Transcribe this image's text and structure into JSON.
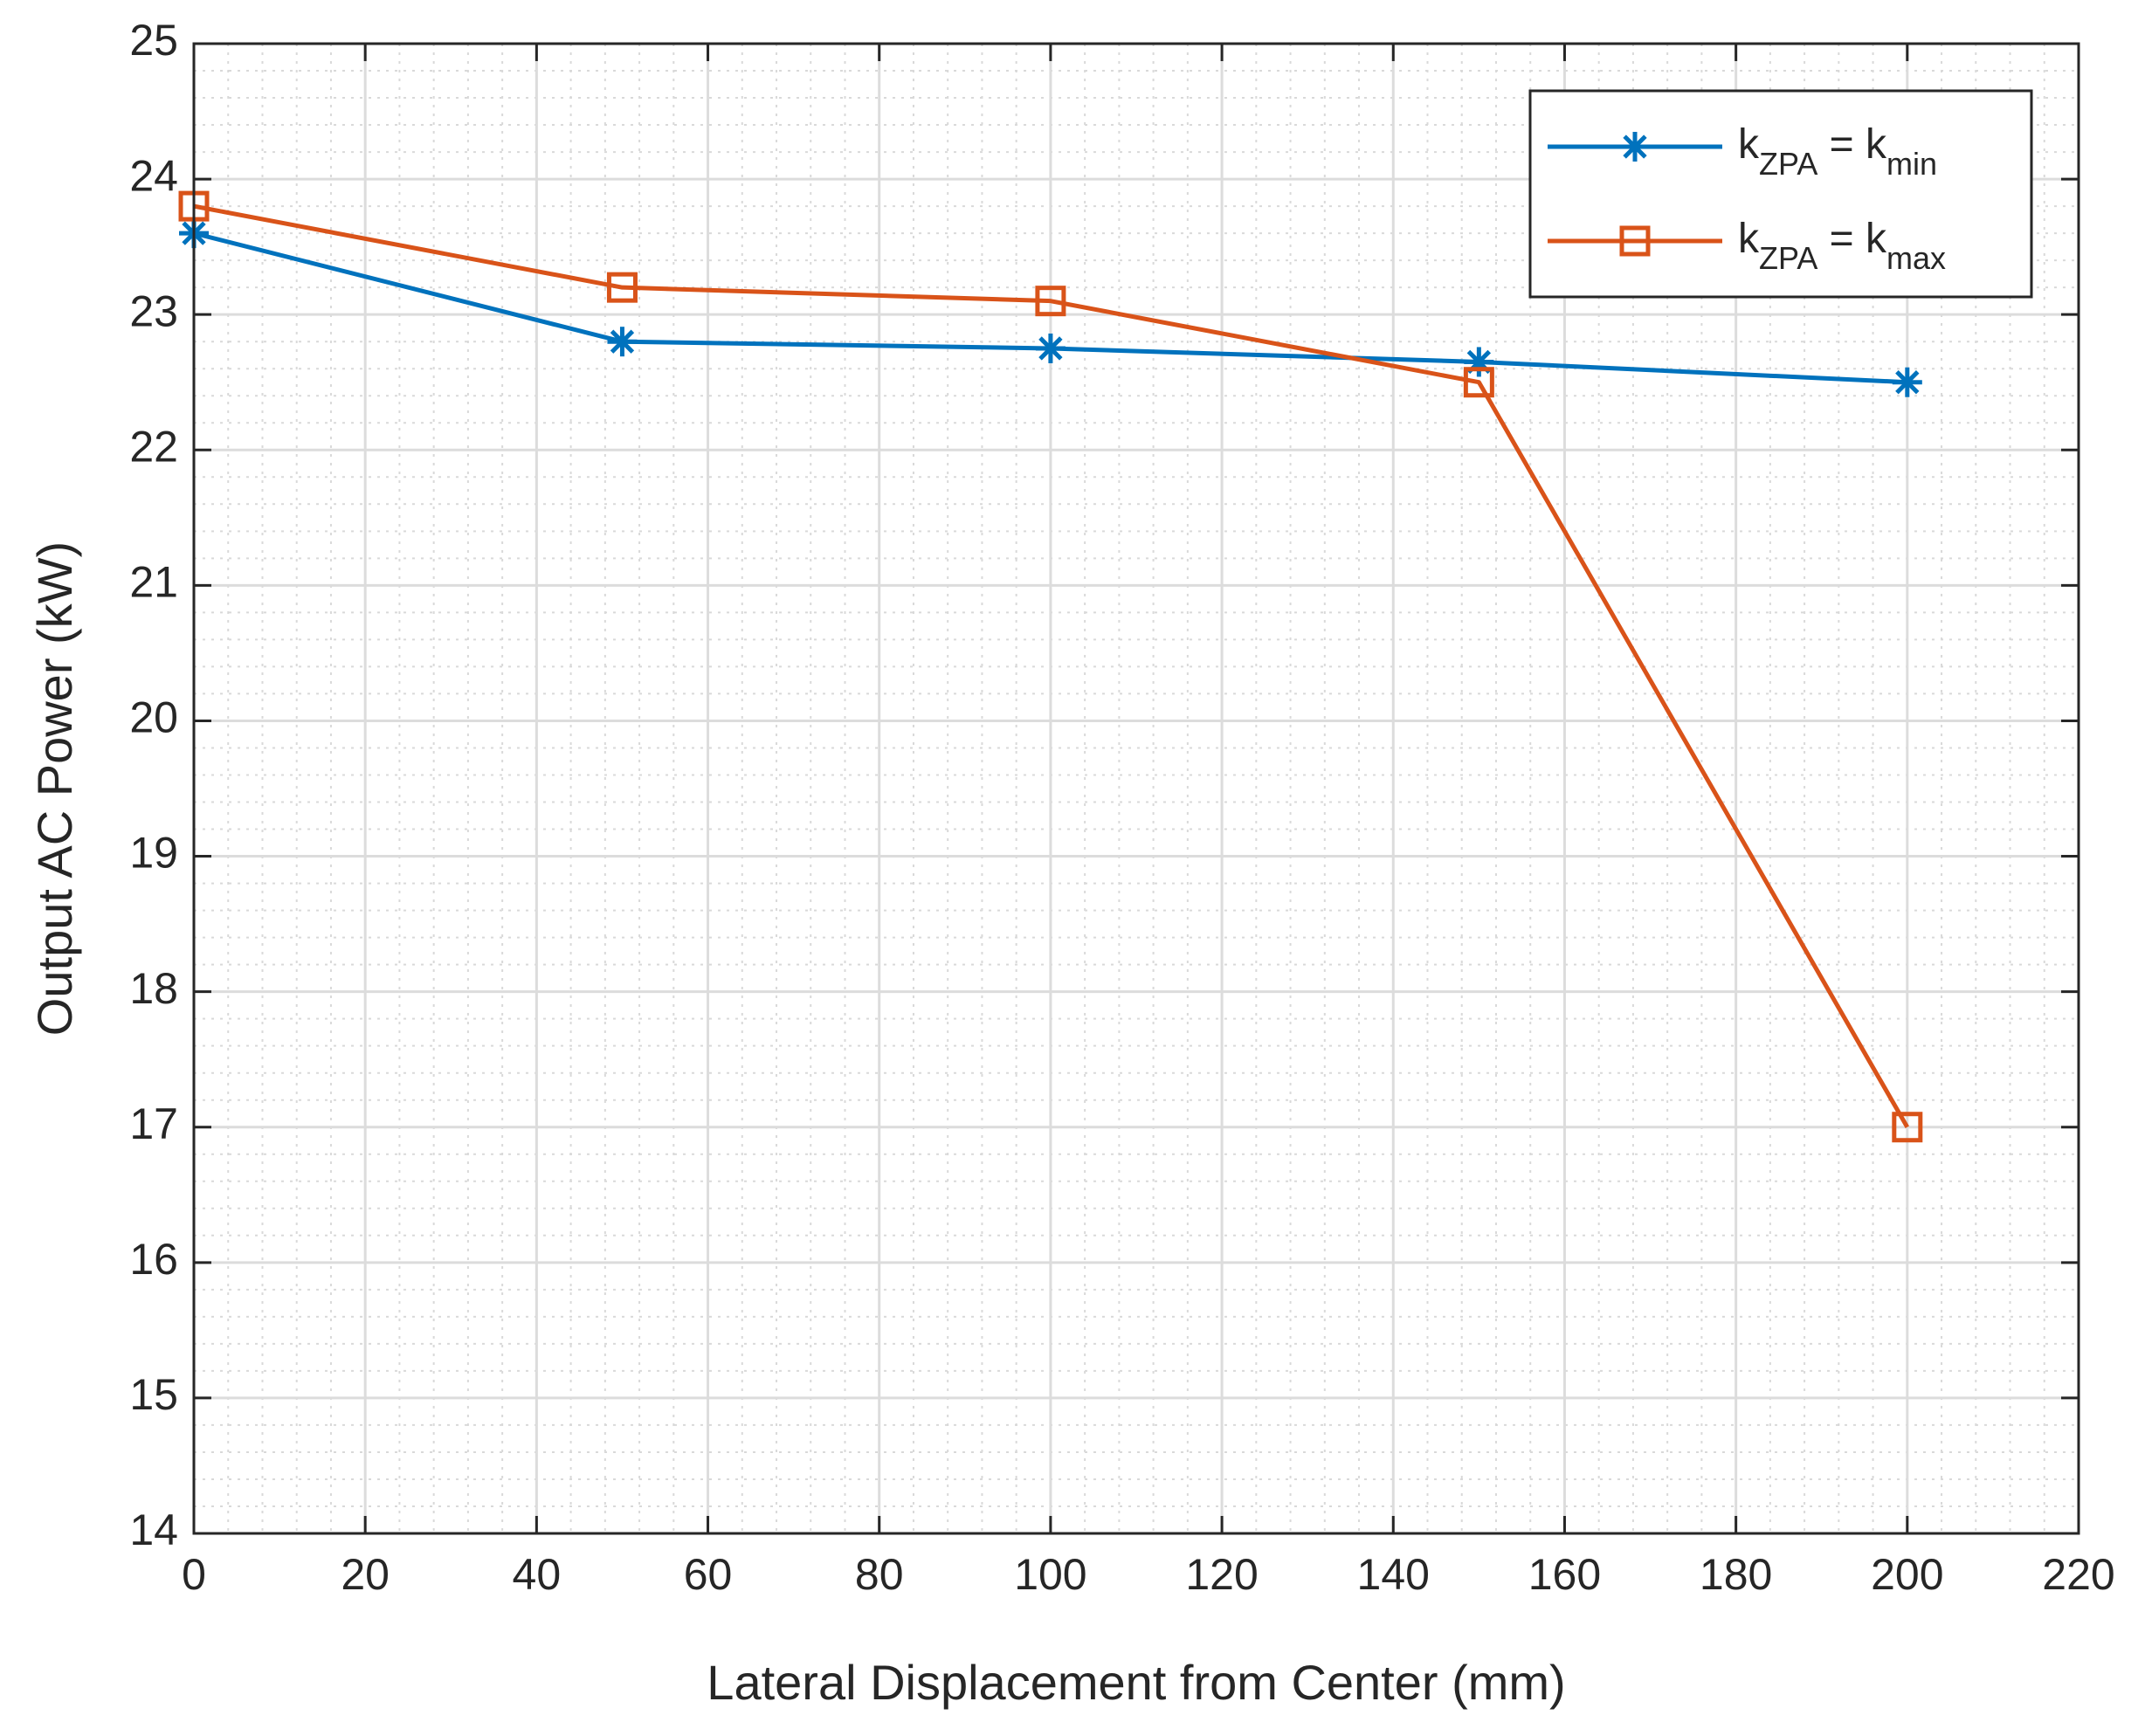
{
  "chart_data": {
    "type": "line",
    "title": "",
    "xlabel": "Lateral Displacement from Center (mm)",
    "ylabel": "Output AC Power (kW)",
    "xlim": [
      0,
      220
    ],
    "ylim": [
      14,
      25
    ],
    "xticks": [
      0,
      20,
      40,
      60,
      80,
      100,
      120,
      140,
      160,
      180,
      200,
      220
    ],
    "yticks": [
      14,
      15,
      16,
      17,
      18,
      19,
      20,
      21,
      22,
      23,
      24,
      25
    ],
    "grid": true,
    "minor_grid": true,
    "legend_position": "top-right",
    "x": [
      0,
      50,
      100,
      150,
      200
    ],
    "series": [
      {
        "name": "kZPA = kmin",
        "label_main": "k",
        "label_sub1": "ZPA",
        "label_eq": " = k",
        "label_sub2": "min",
        "marker": "asterisk",
        "color": "#0072BD",
        "values": [
          23.6,
          22.8,
          22.75,
          22.65,
          22.5
        ]
      },
      {
        "name": "kZPA = kmax",
        "label_main": "k",
        "label_sub1": "ZPA",
        "label_eq": " = k",
        "label_sub2": "max",
        "marker": "square",
        "color": "#D95319",
        "values": [
          23.8,
          23.2,
          23.1,
          22.5,
          17.0
        ]
      }
    ]
  }
}
